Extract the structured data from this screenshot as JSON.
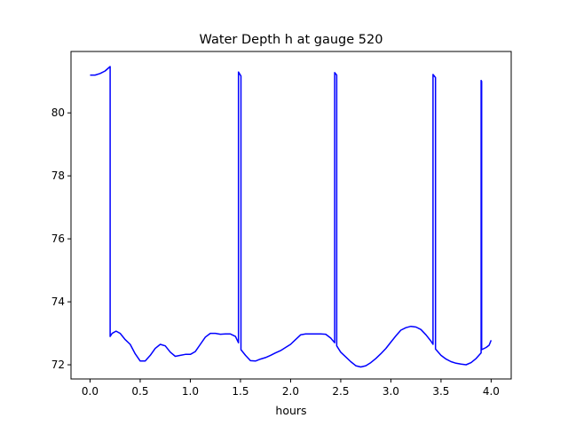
{
  "chart_data": {
    "type": "line",
    "title": "Water Depth h at gauge 520",
    "xlabel": "hours",
    "ylabel": "",
    "xlim": [
      -0.19,
      4.2
    ],
    "ylim": [
      71.55,
      81.95
    ],
    "xticks": [
      0.0,
      0.5,
      1.0,
      1.5,
      2.0,
      2.5,
      3.0,
      3.5,
      4.0
    ],
    "xtick_labels": [
      "0.0",
      "0.5",
      "1.0",
      "1.5",
      "2.0",
      "2.5",
      "3.0",
      "3.5",
      "4.0"
    ],
    "yticks": [
      72,
      74,
      76,
      78,
      80
    ],
    "ytick_labels": [
      "72",
      "74",
      "76",
      "78",
      "80"
    ],
    "grid": false,
    "legend": false,
    "series": [
      {
        "color": "#0000ff",
        "points": [
          [
            0.0,
            81.2
          ],
          [
            0.05,
            81.2
          ],
          [
            0.1,
            81.25
          ],
          [
            0.15,
            81.33
          ],
          [
            0.2,
            81.47
          ],
          [
            0.2,
            72.9
          ],
          [
            0.22,
            73.0
          ],
          [
            0.26,
            73.07
          ],
          [
            0.3,
            73.0
          ],
          [
            0.35,
            72.8
          ],
          [
            0.4,
            72.65
          ],
          [
            0.45,
            72.35
          ],
          [
            0.5,
            72.12
          ],
          [
            0.55,
            72.12
          ],
          [
            0.6,
            72.3
          ],
          [
            0.65,
            72.52
          ],
          [
            0.7,
            72.65
          ],
          [
            0.75,
            72.6
          ],
          [
            0.8,
            72.4
          ],
          [
            0.85,
            72.27
          ],
          [
            0.9,
            72.3
          ],
          [
            0.95,
            72.33
          ],
          [
            1.0,
            72.33
          ],
          [
            1.05,
            72.42
          ],
          [
            1.1,
            72.65
          ],
          [
            1.15,
            72.88
          ],
          [
            1.2,
            73.0
          ],
          [
            1.25,
            73.0
          ],
          [
            1.3,
            72.97
          ],
          [
            1.35,
            72.98
          ],
          [
            1.4,
            72.98
          ],
          [
            1.45,
            72.9
          ],
          [
            1.48,
            72.7
          ],
          [
            1.48,
            81.3
          ],
          [
            1.505,
            81.17
          ],
          [
            1.505,
            72.48
          ],
          [
            1.55,
            72.3
          ],
          [
            1.6,
            72.13
          ],
          [
            1.65,
            72.12
          ],
          [
            1.7,
            72.18
          ],
          [
            1.75,
            72.23
          ],
          [
            1.8,
            72.3
          ],
          [
            1.85,
            72.38
          ],
          [
            1.9,
            72.45
          ],
          [
            1.95,
            72.55
          ],
          [
            2.0,
            72.65
          ],
          [
            2.05,
            72.8
          ],
          [
            2.1,
            72.95
          ],
          [
            2.15,
            72.98
          ],
          [
            2.2,
            72.98
          ],
          [
            2.25,
            72.98
          ],
          [
            2.3,
            72.98
          ],
          [
            2.35,
            72.97
          ],
          [
            2.4,
            72.85
          ],
          [
            2.44,
            72.7
          ],
          [
            2.44,
            81.28
          ],
          [
            2.46,
            81.2
          ],
          [
            2.46,
            72.6
          ],
          [
            2.5,
            72.4
          ],
          [
            2.55,
            72.25
          ],
          [
            2.6,
            72.1
          ],
          [
            2.65,
            71.97
          ],
          [
            2.7,
            71.93
          ],
          [
            2.75,
            71.97
          ],
          [
            2.8,
            72.07
          ],
          [
            2.85,
            72.2
          ],
          [
            2.9,
            72.35
          ],
          [
            2.95,
            72.52
          ],
          [
            3.0,
            72.72
          ],
          [
            3.05,
            72.92
          ],
          [
            3.1,
            73.1
          ],
          [
            3.15,
            73.18
          ],
          [
            3.2,
            73.22
          ],
          [
            3.25,
            73.2
          ],
          [
            3.3,
            73.12
          ],
          [
            3.35,
            72.95
          ],
          [
            3.4,
            72.75
          ],
          [
            3.42,
            72.65
          ],
          [
            3.42,
            81.22
          ],
          [
            3.445,
            81.12
          ],
          [
            3.445,
            72.5
          ],
          [
            3.5,
            72.3
          ],
          [
            3.55,
            72.18
          ],
          [
            3.6,
            72.1
          ],
          [
            3.65,
            72.05
          ],
          [
            3.7,
            72.02
          ],
          [
            3.75,
            72.0
          ],
          [
            3.8,
            72.07
          ],
          [
            3.85,
            72.2
          ],
          [
            3.9,
            72.38
          ],
          [
            3.9,
            81.03
          ],
          [
            3.905,
            81.0
          ],
          [
            3.905,
            72.48
          ],
          [
            3.95,
            72.55
          ],
          [
            3.98,
            72.62
          ],
          [
            4.0,
            72.78
          ]
        ]
      }
    ]
  }
}
